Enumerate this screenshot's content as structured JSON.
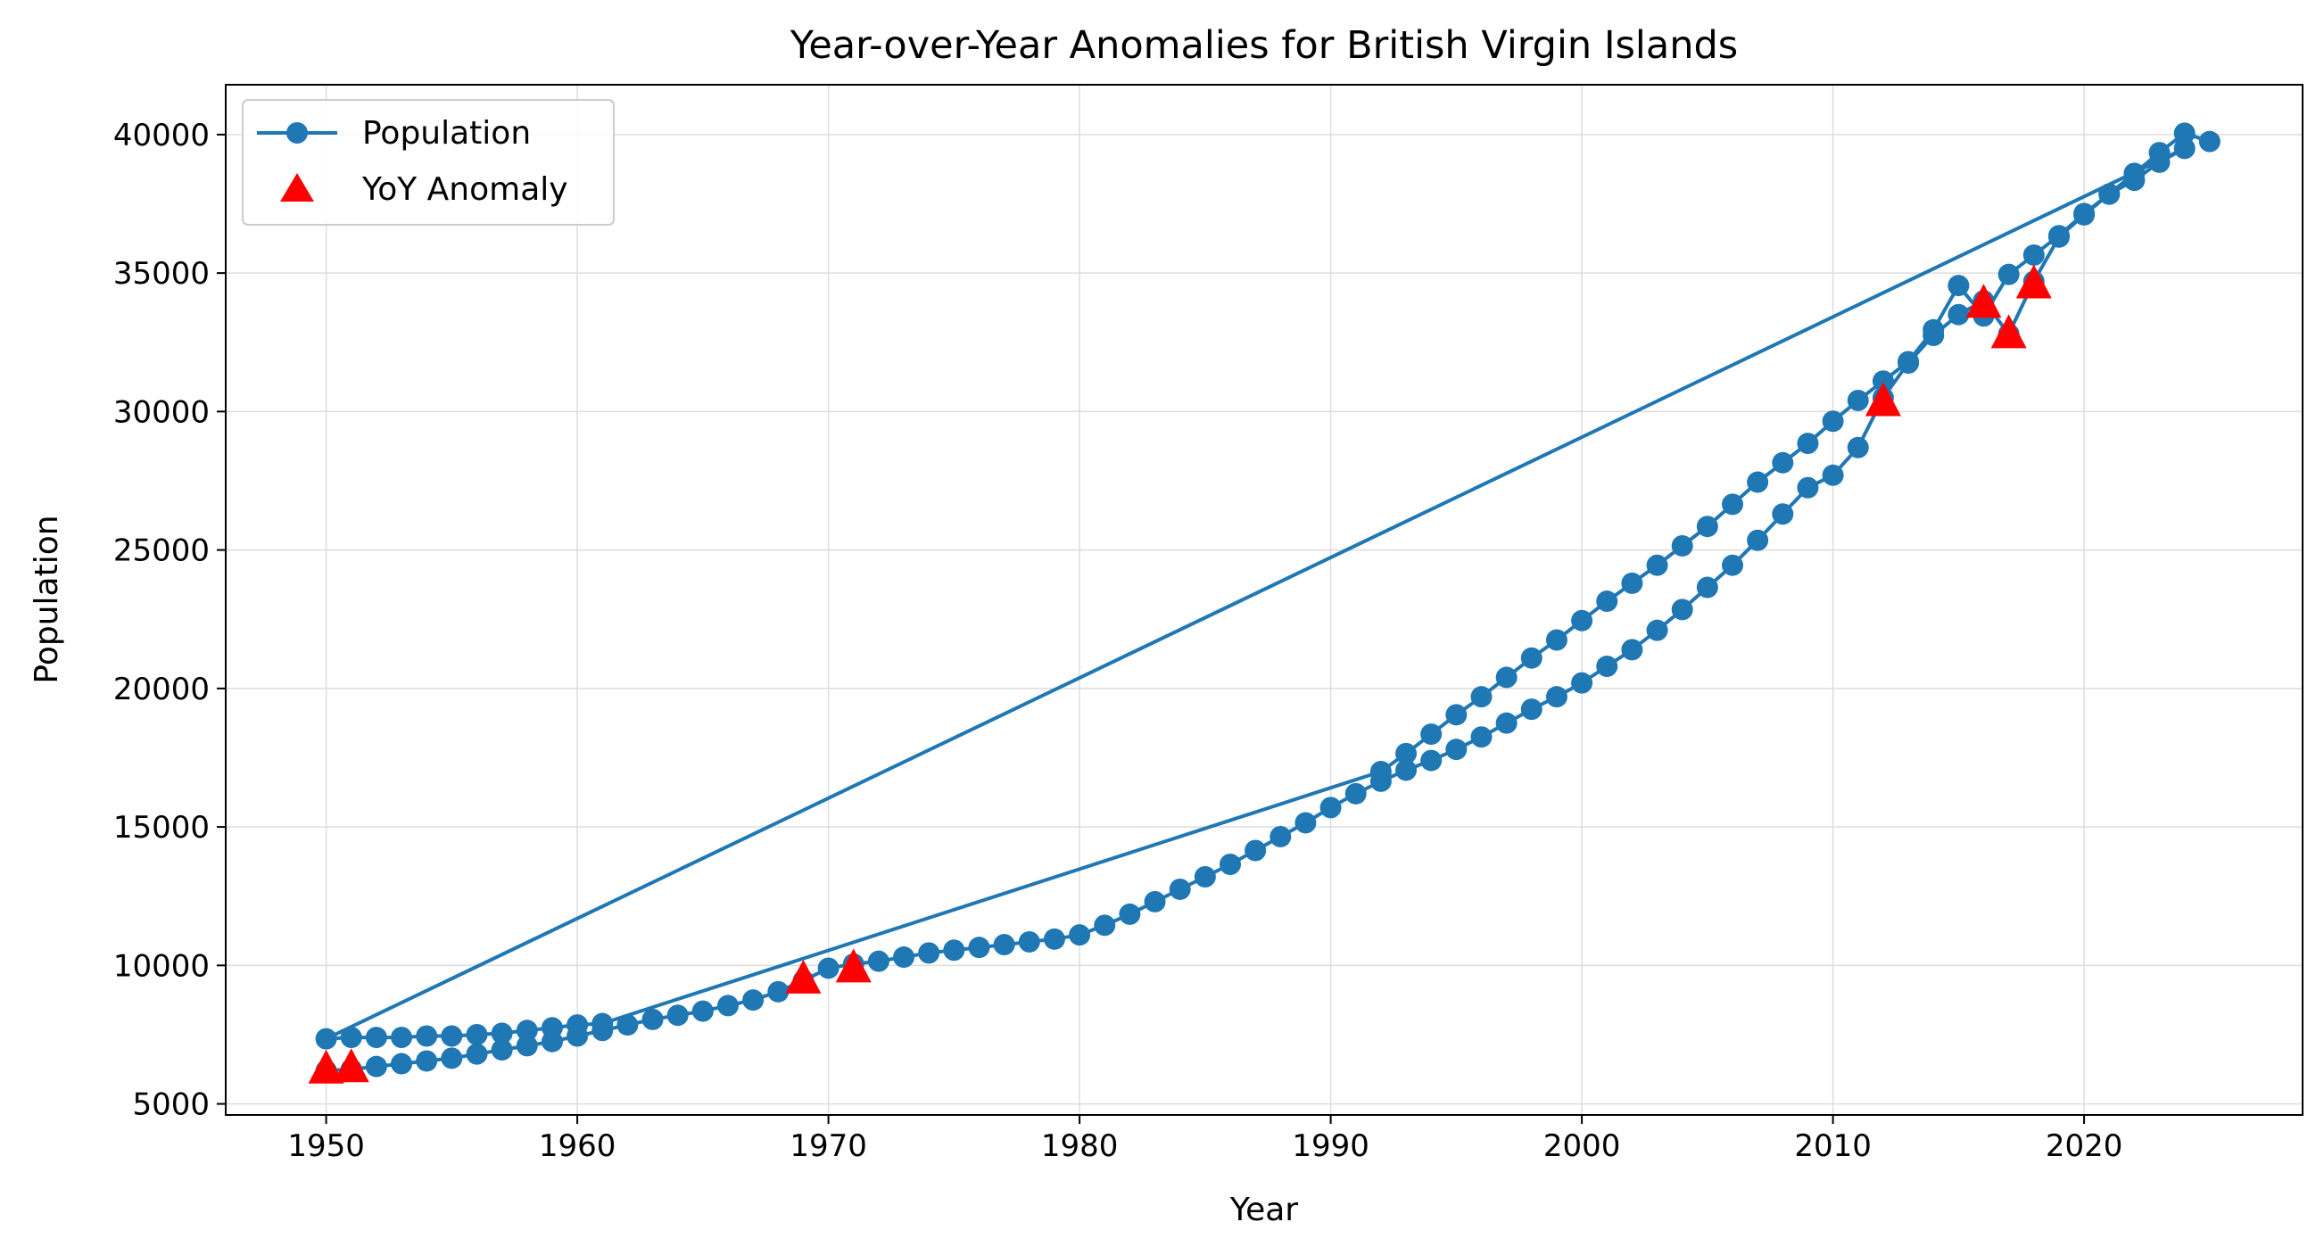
{
  "chart_data": {
    "type": "line",
    "title": "Year-over-Year Anomalies for British Virgin Islands",
    "xlabel": "Year",
    "ylabel": "Population",
    "xlim": [
      1946,
      2028.7
    ],
    "ylim": [
      4600,
      41800
    ],
    "xticks": [
      1950,
      1960,
      1970,
      1980,
      1990,
      2000,
      2010,
      2020
    ],
    "yticks": [
      5000,
      10000,
      15000,
      20000,
      25000,
      30000,
      35000,
      40000
    ],
    "grid": true,
    "legend_position": "top-left",
    "colors": {
      "line": "#1f77b4",
      "anomaly": "#ff0000",
      "grid": "#dddddd"
    },
    "series": [
      {
        "name": "Population",
        "style": "line-with-circle-markers",
        "x": [
          1950,
          1951,
          1952,
          1953,
          1954,
          1955,
          1956,
          1957,
          1958,
          1959,
          1960,
          1961,
          1962,
          1963,
          1964,
          1965,
          1966,
          1967,
          1968,
          1969,
          1970,
          1971,
          1972,
          1973,
          1974,
          1975,
          1976,
          1977,
          1978,
          1979,
          1980,
          1981,
          1982,
          1983,
          1984,
          1985,
          1986,
          1987,
          1988,
          1989,
          1990,
          1991,
          1992,
          1993,
          1994,
          1995,
          1996,
          1997,
          1998,
          1999,
          2000,
          2001,
          2002,
          2003,
          2004,
          2005,
          2006,
          2007,
          2008,
          2009,
          2010,
          2011,
          2012,
          2013,
          2014,
          2015,
          2016,
          2017,
          2018,
          2019,
          2020,
          2021,
          2022,
          2023,
          2024,
          1950,
          1951,
          1952,
          1953,
          1954,
          1955,
          1956,
          1957,
          1958,
          1959,
          1960,
          1961,
          1992,
          1993,
          1994,
          1995,
          1996,
          1997,
          1998,
          1999,
          2000,
          2001,
          2002,
          2003,
          2004,
          2005,
          2006,
          2007,
          2008,
          2009,
          2010,
          2011,
          2012,
          2013,
          2014,
          2015,
          2016,
          2017,
          2018,
          2019,
          2020,
          2021,
          2022,
          2023,
          2024,
          2025
        ],
        "y": [
          6200,
          6250,
          6350,
          6450,
          6550,
          6650,
          6800,
          6950,
          7100,
          7250,
          7450,
          7650,
          7850,
          8050,
          8200,
          8350,
          8550,
          8750,
          9050,
          9450,
          9900,
          10050,
          10150,
          10300,
          10450,
          10550,
          10650,
          10750,
          10850,
          10950,
          11100,
          11450,
          11850,
          12300,
          12750,
          13200,
          13650,
          14150,
          14650,
          15150,
          15700,
          16200,
          16650,
          17050,
          17400,
          17800,
          18250,
          18750,
          19250,
          19700,
          20200,
          20800,
          21400,
          22100,
          22850,
          23650,
          24450,
          25350,
          26300,
          27250,
          27700,
          28700,
          30500,
          31750,
          32750,
          33500,
          34000,
          32800,
          34700,
          36300,
          37100,
          37850,
          38350,
          39000,
          39500,
          7350,
          7400,
          7400,
          7400,
          7450,
          7450,
          7500,
          7550,
          7650,
          7750,
          7850,
          7900,
          17000,
          17650,
          18350,
          19050,
          19700,
          20400,
          21100,
          21750,
          22450,
          23150,
          23800,
          24450,
          25150,
          25850,
          26650,
          27450,
          28150,
          28850,
          29650,
          30400,
          31100,
          31800,
          32950,
          34550,
          33450,
          34950,
          35650,
          36350,
          37150,
          37850,
          38600,
          39350,
          40050,
          39750
        ]
      },
      {
        "name": "YoY Anomaly",
        "style": "triangle-markers",
        "x": [
          1950,
          1951,
          1969,
          1971,
          2012,
          2016,
          2017,
          2018
        ],
        "y": [
          6200,
          6250,
          9450,
          9850,
          30300,
          33850,
          32750,
          34550
        ]
      }
    ]
  }
}
